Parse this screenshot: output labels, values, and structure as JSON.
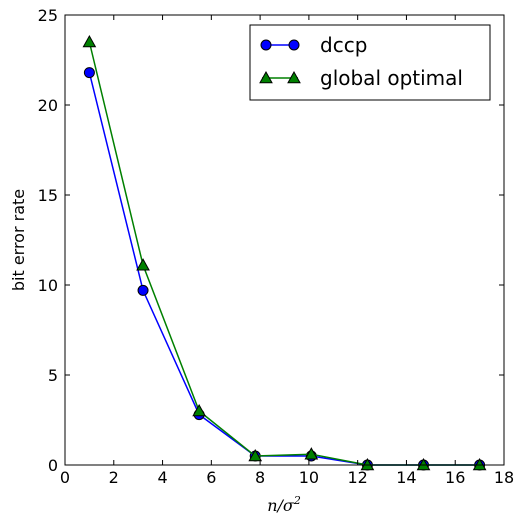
{
  "chart_data": {
    "type": "line",
    "xlabel": "n/σ",
    "xlabel_superscript": "2",
    "ylabel": "bit error rate",
    "xlim": [
      0,
      18
    ],
    "ylim": [
      0,
      25
    ],
    "xticks": [
      0,
      2,
      4,
      6,
      8,
      10,
      12,
      14,
      16,
      18
    ],
    "yticks": [
      0,
      5,
      10,
      15,
      20,
      25
    ],
    "grid": false,
    "legend_position": "top-right",
    "series": [
      {
        "name": "dccp",
        "color": "#0000ff",
        "marker": "circle",
        "x": [
          1.0,
          3.2,
          5.5,
          7.8,
          10.1,
          12.4,
          14.7,
          17.0
        ],
        "y": [
          21.8,
          9.7,
          2.8,
          0.5,
          0.5,
          0.0,
          0.0,
          0.0
        ]
      },
      {
        "name": "global optimal",
        "color": "#008000",
        "marker": "triangle",
        "x": [
          1.0,
          3.2,
          5.5,
          7.8,
          10.1,
          12.4,
          14.7,
          17.0
        ],
        "y": [
          23.5,
          11.1,
          3.0,
          0.5,
          0.6,
          0.0,
          0.0,
          0.0
        ]
      }
    ]
  }
}
